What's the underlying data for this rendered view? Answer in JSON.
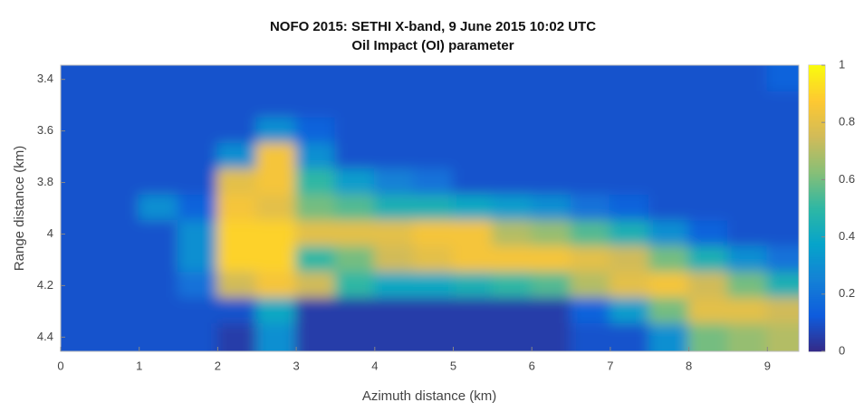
{
  "chart_data": {
    "type": "heatmap",
    "title": "NOFO 2015: SETHI X-band, 9 June 2015 10:02 UTC",
    "subtitle": "Oil Impact (OI) parameter",
    "xlabel": "Azimuth distance (km)",
    "ylabel": "Range distance (km)",
    "x": [
      0.25,
      0.75,
      1.25,
      1.75,
      2.25,
      2.75,
      3.25,
      3.75,
      4.25,
      4.75,
      5.25,
      5.75,
      6.25,
      6.75,
      7.25,
      7.75,
      8.25,
      8.75,
      9.25
    ],
    "y": [
      3.4,
      3.5,
      3.6,
      3.7,
      3.8,
      3.9,
      4.0,
      4.1,
      4.2,
      4.3,
      4.4
    ],
    "z": [
      [
        0.1,
        0.1,
        0.1,
        0.1,
        0.1,
        0.1,
        0.1,
        0.1,
        0.1,
        0.1,
        0.1,
        0.1,
        0.1,
        0.1,
        0.1,
        0.1,
        0.1,
        0.1,
        0.15
      ],
      [
        0.1,
        0.1,
        0.1,
        0.1,
        0.1,
        0.1,
        0.1,
        0.1,
        0.1,
        0.1,
        0.1,
        0.1,
        0.1,
        0.1,
        0.1,
        0.1,
        0.1,
        0.1,
        0.1
      ],
      [
        0.1,
        0.1,
        0.1,
        0.1,
        0.1,
        0.3,
        0.15,
        0.1,
        0.1,
        0.1,
        0.1,
        0.1,
        0.1,
        0.1,
        0.1,
        0.1,
        0.1,
        0.1,
        0.1
      ],
      [
        0.1,
        0.1,
        0.1,
        0.1,
        0.3,
        0.85,
        0.3,
        0.1,
        0.1,
        0.1,
        0.1,
        0.1,
        0.1,
        0.1,
        0.1,
        0.1,
        0.1,
        0.1,
        0.1
      ],
      [
        0.1,
        0.1,
        0.1,
        0.1,
        0.8,
        0.85,
        0.5,
        0.35,
        0.25,
        0.2,
        0.1,
        0.1,
        0.1,
        0.1,
        0.1,
        0.1,
        0.1,
        0.1,
        0.1
      ],
      [
        0.1,
        0.1,
        0.3,
        0.15,
        0.85,
        0.8,
        0.6,
        0.55,
        0.45,
        0.45,
        0.4,
        0.35,
        0.3,
        0.2,
        0.15,
        0.1,
        0.1,
        0.1,
        0.1
      ],
      [
        0.1,
        0.1,
        0.1,
        0.3,
        0.9,
        0.9,
        0.8,
        0.8,
        0.8,
        0.85,
        0.85,
        0.7,
        0.65,
        0.55,
        0.45,
        0.3,
        0.15,
        0.1,
        0.1
      ],
      [
        0.1,
        0.1,
        0.1,
        0.3,
        0.9,
        0.9,
        0.5,
        0.6,
        0.75,
        0.8,
        0.85,
        0.85,
        0.85,
        0.8,
        0.75,
        0.6,
        0.45,
        0.3,
        0.2
      ],
      [
        0.1,
        0.1,
        0.1,
        0.2,
        0.75,
        0.85,
        0.75,
        0.5,
        0.4,
        0.4,
        0.45,
        0.5,
        0.55,
        0.7,
        0.8,
        0.85,
        0.75,
        0.6,
        0.45
      ],
      [
        0.1,
        0.1,
        0.1,
        0.1,
        0.1,
        0.4,
        0.05,
        0.05,
        0.05,
        0.05,
        0.05,
        0.05,
        0.05,
        0.15,
        0.35,
        0.6,
        0.8,
        0.8,
        0.75
      ],
      [
        0.1,
        0.1,
        0.1,
        0.1,
        0.05,
        0.3,
        0.05,
        0.05,
        0.05,
        0.05,
        0.05,
        0.05,
        0.05,
        0.1,
        0.1,
        0.3,
        0.6,
        0.65,
        0.7
      ]
    ],
    "xlim": [
      0,
      9.4
    ],
    "ylim": [
      3.345,
      4.455
    ],
    "y_reversed": true,
    "xticks": [
      0,
      1,
      2,
      3,
      4,
      5,
      6,
      7,
      8,
      9
    ],
    "yticks": [
      3.4,
      3.6,
      3.8,
      4,
      4.2,
      4.4
    ],
    "clim": [
      0,
      1
    ],
    "cticks": [
      0,
      0.2,
      0.4,
      0.6,
      0.8,
      1
    ],
    "colormap": [
      "#352a87",
      "#0f5cdd",
      "#1481d6",
      "#06a4ca",
      "#2eb7a4",
      "#87bf77",
      "#d1bb59",
      "#fec832",
      "#f9fb0e"
    ]
  }
}
